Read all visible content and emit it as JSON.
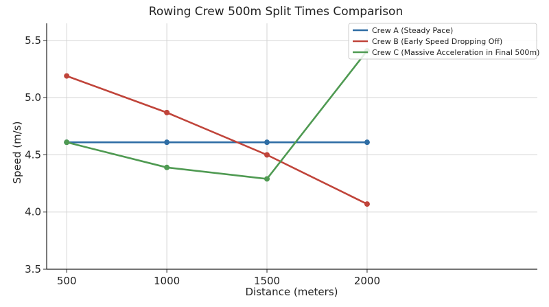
{
  "chart_data": {
    "type": "line",
    "title": "Rowing Crew 500m Split Times Comparison",
    "xlabel": "Distance (meters)",
    "ylabel": "Speed (m/s)",
    "x": [
      500,
      1000,
      1500,
      2000
    ],
    "xticks": [
      "500",
      "1000",
      "1500",
      "2000"
    ],
    "xlim": [
      400,
      2850
    ],
    "ylim": [
      3.5,
      5.65
    ],
    "yticks": [
      "3.5",
      "4.0",
      "4.5",
      "5.0",
      "5.5"
    ],
    "grid": true,
    "legend_position": "top-right",
    "series": [
      {
        "name": "Crew A (Steady Pace)",
        "color": "#2e6da4",
        "values": [
          4.61,
          4.61,
          4.61,
          4.61
        ]
      },
      {
        "name": "Crew B (Early Speed Dropping Off)",
        "color": "#c0443a",
        "values": [
          5.19,
          4.87,
          4.5,
          4.07
        ]
      },
      {
        "name": "Crew C (Massive Acceleration in Final 500m)",
        "color": "#4f9a52",
        "values": [
          4.61,
          4.39,
          4.29,
          5.41
        ]
      }
    ]
  }
}
